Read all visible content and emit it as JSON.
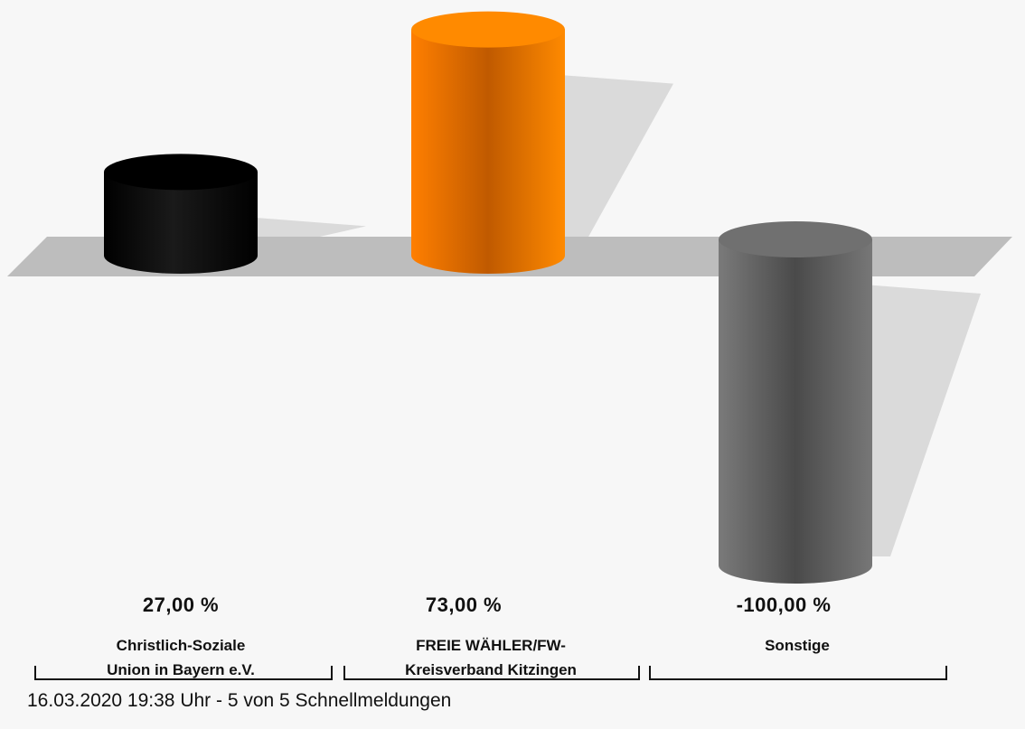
{
  "chart_data": {
    "type": "bar",
    "style": "3d-cylinder",
    "categories": [
      [
        "Christlich-Soziale",
        "Union in Bayern e.V."
      ],
      [
        "FREIE WÄHLER/FW-",
        "Kreisverband Kitzingen"
      ],
      [
        "Sonstige"
      ]
    ],
    "values": [
      27.0,
      73.0,
      -100.0
    ],
    "value_labels": [
      "27,00 %",
      "73,00 %",
      "-100,00 %"
    ],
    "colors": [
      "#111111",
      "#ff8000",
      "#6f6f6f"
    ],
    "ylim": [
      -100,
      73
    ],
    "grid": false,
    "legend": "none"
  },
  "footer": "16.03.2020 19:38 Uhr - 5 von 5 Schnellmeldungen"
}
